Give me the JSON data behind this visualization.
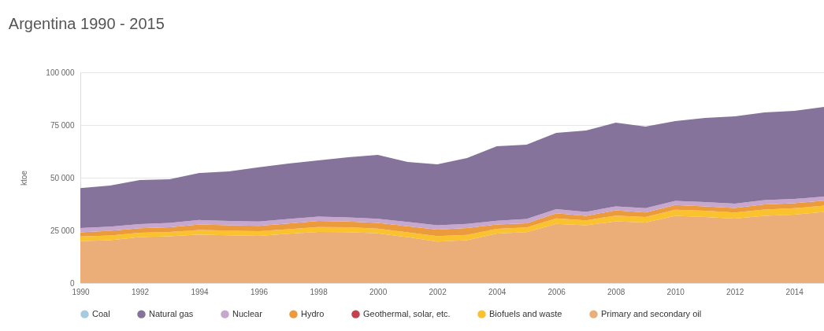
{
  "chart_data": {
    "type": "area",
    "title": "Argentina 1990 - 2015",
    "ylabel": "ktoe",
    "stacked": true,
    "x": [
      1990,
      1991,
      1992,
      1993,
      1994,
      1995,
      1996,
      1997,
      1998,
      1999,
      2000,
      2001,
      2002,
      2003,
      2004,
      2005,
      2006,
      2007,
      2008,
      2009,
      2010,
      2011,
      2012,
      2013,
      2014,
      2015
    ],
    "xlim": [
      1990,
      2015
    ],
    "xticks": [
      1990,
      1992,
      1994,
      1996,
      1998,
      2000,
      2002,
      2004,
      2006,
      2008,
      2010,
      2012,
      2014
    ],
    "ylim": [
      0,
      100000
    ],
    "yticks": [
      0,
      {
        "value": 25000,
        "label": "25 000"
      },
      {
        "value": 50000,
        "label": "50 000"
      },
      {
        "value": 75000,
        "label": "75 000"
      },
      {
        "value": 100000,
        "label": "100 000"
      }
    ],
    "grid": "y",
    "legend": "bottom",
    "series": [
      {
        "name": "Primary and secondary oil",
        "color": "#ebae78",
        "values": [
          19900,
          20300,
          21800,
          22200,
          23000,
          22700,
          22400,
          23400,
          24300,
          24200,
          23600,
          21800,
          19700,
          20300,
          23500,
          24200,
          28100,
          27400,
          29300,
          28700,
          31900,
          31300,
          30600,
          31900,
          32500,
          33800
        ]
      },
      {
        "name": "Biofuels and waste",
        "color": "#f9c22e",
        "values": [
          2200,
          2300,
          2100,
          2100,
          2200,
          2200,
          2200,
          2200,
          2300,
          2300,
          2200,
          2300,
          2600,
          2600,
          2200,
          2200,
          2600,
          2400,
          2700,
          2600,
          2900,
          3000,
          2900,
          3000,
          3000,
          3000
        ]
      },
      {
        "name": "Geothermal, solar, etc.",
        "color": "#c7404e",
        "values": [
          null,
          null,
          null,
          null,
          null,
          null,
          null,
          null,
          null,
          null,
          null,
          null,
          null,
          null,
          null,
          null,
          null,
          null,
          null,
          null,
          null,
          null,
          null,
          null,
          null,
          null
        ]
      },
      {
        "name": "Hydro",
        "color": "#eb9a3c",
        "values": [
          2000,
          2200,
          2100,
          2200,
          2600,
          2500,
          2500,
          2700,
          2900,
          2700,
          2700,
          2900,
          3100,
          3200,
          2100,
          2000,
          2400,
          2100,
          2500,
          2200,
          2200,
          2100,
          2100,
          2400,
          2400,
          2300
        ]
      },
      {
        "name": "Nuclear",
        "color": "#c8a7cf",
        "values": [
          2000,
          2000,
          2000,
          2000,
          2100,
          2100,
          2100,
          2100,
          2000,
          2000,
          2000,
          2000,
          2000,
          2000,
          1800,
          2000,
          2000,
          1900,
          1900,
          2000,
          2000,
          2000,
          2100,
          2100,
          2000,
          1900
        ]
      },
      {
        "name": "Natural gas",
        "color": "#85739b",
        "values": [
          19000,
          19500,
          20900,
          20800,
          22300,
          23500,
          25700,
          26300,
          26700,
          28500,
          30300,
          28500,
          28900,
          31200,
          35300,
          35300,
          36200,
          38600,
          39700,
          38800,
          37900,
          40000,
          41400,
          41600,
          41800,
          42600
        ]
      },
      {
        "name": "Coal",
        "color": "#a4cbe0",
        "values": [
          null,
          null,
          null,
          null,
          null,
          null,
          null,
          null,
          null,
          null,
          null,
          null,
          null,
          null,
          null,
          null,
          null,
          null,
          null,
          null,
          null,
          null,
          null,
          null,
          null,
          null
        ]
      }
    ]
  }
}
